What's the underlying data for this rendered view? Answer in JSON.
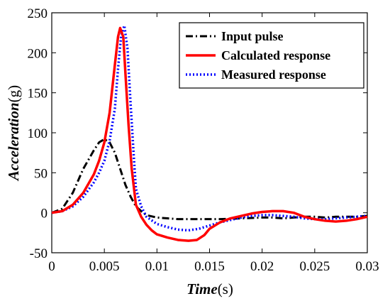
{
  "chart_data": {
    "type": "line",
    "xlim": [
      0,
      0.03
    ],
    "ylim": [
      -50,
      250
    ],
    "x_ticks": [
      "0",
      "0.005",
      "0.01",
      "0.015",
      "0.02",
      "0.025",
      "0.03"
    ],
    "y_ticks": [
      "-50",
      "0",
      "50",
      "100",
      "150",
      "200",
      "250"
    ],
    "xlabel": {
      "italic": "Time",
      "unit": "(s)"
    },
    "ylabel": {
      "italic": "Acceleration",
      "unit": "(g)"
    },
    "grid": false,
    "legend_position": "top-right",
    "series": [
      {
        "name": "Input pulse",
        "color": "#000000",
        "style": "dash-dot",
        "points": [
          [
            0,
            0
          ],
          [
            0.001,
            5
          ],
          [
            0.002,
            25
          ],
          [
            0.003,
            55
          ],
          [
            0.004,
            78
          ],
          [
            0.0045,
            88
          ],
          [
            0.005,
            92
          ],
          [
            0.0055,
            88
          ],
          [
            0.006,
            75
          ],
          [
            0.0065,
            55
          ],
          [
            0.007,
            35
          ],
          [
            0.0075,
            20
          ],
          [
            0.008,
            8
          ],
          [
            0.0085,
            2
          ],
          [
            0.009,
            -3
          ],
          [
            0.01,
            -6
          ],
          [
            0.011,
            -7
          ],
          [
            0.012,
            -8
          ],
          [
            0.013,
            -8
          ],
          [
            0.014,
            -8
          ],
          [
            0.015,
            -8
          ],
          [
            0.016,
            -8
          ],
          [
            0.018,
            -7
          ],
          [
            0.02,
            -6
          ],
          [
            0.021,
            -6
          ],
          [
            0.022,
            -7
          ],
          [
            0.023,
            -6
          ],
          [
            0.024,
            -5
          ],
          [
            0.025,
            -5
          ],
          [
            0.026,
            -6
          ],
          [
            0.027,
            -5
          ],
          [
            0.028,
            -5
          ],
          [
            0.029,
            -5
          ],
          [
            0.03,
            -4
          ]
        ]
      },
      {
        "name": "Calculated response",
        "color": "#ff0000",
        "style": "solid",
        "points": [
          [
            0,
            0
          ],
          [
            0.001,
            2
          ],
          [
            0.002,
            10
          ],
          [
            0.003,
            25
          ],
          [
            0.004,
            48
          ],
          [
            0.0045,
            65
          ],
          [
            0.005,
            88
          ],
          [
            0.0055,
            125
          ],
          [
            0.006,
            185
          ],
          [
            0.0063,
            220
          ],
          [
            0.0065,
            231
          ],
          [
            0.0068,
            220
          ],
          [
            0.007,
            175
          ],
          [
            0.0073,
            110
          ],
          [
            0.0076,
            55
          ],
          [
            0.008,
            10
          ],
          [
            0.0085,
            -5
          ],
          [
            0.009,
            -15
          ],
          [
            0.0095,
            -22
          ],
          [
            0.01,
            -27
          ],
          [
            0.011,
            -31
          ],
          [
            0.012,
            -34
          ],
          [
            0.013,
            -35
          ],
          [
            0.0138,
            -34
          ],
          [
            0.0145,
            -28
          ],
          [
            0.015,
            -20
          ],
          [
            0.016,
            -12
          ],
          [
            0.017,
            -7
          ],
          [
            0.018,
            -4
          ],
          [
            0.019,
            -1
          ],
          [
            0.02,
            1
          ],
          [
            0.021,
            2
          ],
          [
            0.022,
            2
          ],
          [
            0.023,
            0
          ],
          [
            0.024,
            -5
          ],
          [
            0.025,
            -8
          ],
          [
            0.026,
            -10
          ],
          [
            0.027,
            -11
          ],
          [
            0.028,
            -10
          ],
          [
            0.029,
            -8
          ],
          [
            0.03,
            -5
          ]
        ]
      },
      {
        "name": "Measured response",
        "color": "#0000ff",
        "style": "dotted",
        "points": [
          [
            0,
            0
          ],
          [
            0.001,
            2
          ],
          [
            0.002,
            8
          ],
          [
            0.003,
            20
          ],
          [
            0.004,
            38
          ],
          [
            0.0045,
            50
          ],
          [
            0.005,
            65
          ],
          [
            0.0055,
            90
          ],
          [
            0.006,
            130
          ],
          [
            0.0063,
            180
          ],
          [
            0.0066,
            222
          ],
          [
            0.0069,
            234
          ],
          [
            0.0072,
            205
          ],
          [
            0.0075,
            135
          ],
          [
            0.0078,
            70
          ],
          [
            0.008,
            30
          ],
          [
            0.0085,
            8
          ],
          [
            0.009,
            -5
          ],
          [
            0.01,
            -14
          ],
          [
            0.011,
            -18
          ],
          [
            0.012,
            -21
          ],
          [
            0.013,
            -22
          ],
          [
            0.014,
            -20
          ],
          [
            0.015,
            -16
          ],
          [
            0.016,
            -12
          ],
          [
            0.017,
            -9
          ],
          [
            0.018,
            -6
          ],
          [
            0.019,
            -4
          ],
          [
            0.02,
            -3
          ],
          [
            0.021,
            -3
          ],
          [
            0.022,
            -4
          ],
          [
            0.023,
            -5
          ],
          [
            0.024,
            -7
          ],
          [
            0.025,
            -8
          ],
          [
            0.026,
            -8
          ],
          [
            0.027,
            -7
          ],
          [
            0.028,
            -6
          ],
          [
            0.029,
            -5
          ],
          [
            0.03,
            -4
          ]
        ]
      }
    ]
  }
}
